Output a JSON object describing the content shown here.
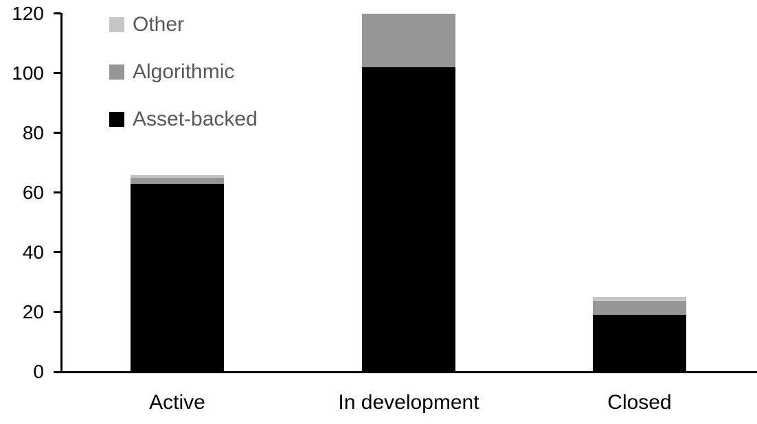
{
  "chart_data": {
    "type": "bar",
    "stacked": true,
    "title": "",
    "xlabel": "",
    "ylabel": "",
    "categories": [
      "Active",
      "In development",
      "Closed"
    ],
    "series": [
      {
        "name": "Other",
        "color": "#c6c6c6",
        "values": [
          1,
          0,
          1
        ]
      },
      {
        "name": "Algorithmic",
        "color": "#969696",
        "values": [
          2,
          18,
          5
        ]
      },
      {
        "name": "Asset-backed",
        "color": "#000000",
        "values": [
          63,
          102,
          19
        ]
      }
    ],
    "stack_order_bottom_to_top": [
      "Asset-backed",
      "Algorithmic",
      "Other"
    ],
    "totals": [
      66,
      120,
      25
    ],
    "ylim": [
      0,
      120
    ],
    "yticks": [
      0,
      20,
      40,
      60,
      80,
      100,
      120
    ],
    "grid": false,
    "legend_position": "top-left",
    "legend_text_color": "#595959",
    "axis_color": "#000000",
    "background_color": "#ffffff"
  }
}
